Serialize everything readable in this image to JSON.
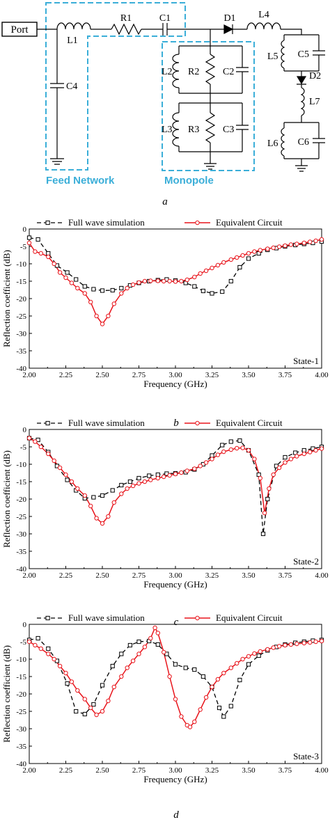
{
  "circuit": {
    "port_label": "Port",
    "components": [
      "L1",
      "R1",
      "C1",
      "D1",
      "L4",
      "C4",
      "L2",
      "R2",
      "C2",
      "L3",
      "R3",
      "C3",
      "L5",
      "C5",
      "D2",
      "L7",
      "L6",
      "C6"
    ],
    "feed_network_label": "Feed Network",
    "monopole_label": "Monopole",
    "box_color": "#3aaed8"
  },
  "captions": [
    "a",
    "b",
    "c",
    "d"
  ],
  "colors": {
    "full_wave": "#000000",
    "equivalent": "#e8141b"
  },
  "chart_data": [
    {
      "type": "line",
      "xlabel": "Frequency (GHz)",
      "ylabel": "Reflection coefficient (dB)",
      "xlim": [
        2.0,
        4.0
      ],
      "ylim": [
        -40,
        0
      ],
      "xticks": [
        "2.00",
        "2.25",
        "2.50",
        "2.75",
        "3.00",
        "3.25",
        "3.50",
        "3.75",
        "4.00"
      ],
      "yticks": [
        "0",
        "-5",
        "-10",
        "-15",
        "-20",
        "-25",
        "-30",
        "-35",
        "-40"
      ],
      "legend_position": "top",
      "annotation": "State-1",
      "series": [
        {
          "name": "Full wave simulation",
          "x": [
            2.0,
            2.06,
            2.13,
            2.19,
            2.26,
            2.32,
            2.38,
            2.44,
            2.5,
            2.57,
            2.63,
            2.69,
            2.75,
            2.82,
            2.88,
            2.94,
            3.0,
            3.07,
            3.13,
            3.19,
            3.25,
            3.32,
            3.38,
            3.44,
            3.5,
            3.57,
            3.63,
            3.69,
            3.75,
            3.82,
            3.88,
            3.94,
            4.0
          ],
          "y": [
            -2.5,
            -3.0,
            -7.0,
            -10.5,
            -12.5,
            -14.5,
            -16.5,
            -17.3,
            -17.7,
            -17.6,
            -17.0,
            -16.2,
            -15.5,
            -15.0,
            -14.7,
            -14.5,
            -14.8,
            -15.5,
            -16.5,
            -17.8,
            -18.5,
            -18.0,
            -15.0,
            -11.0,
            -8.5,
            -7.0,
            -6.0,
            -5.5,
            -5.0,
            -4.6,
            -4.3,
            -4.0,
            -3.6
          ]
        },
        {
          "name": "Equivalent Circuit",
          "x": [
            2.0,
            2.04,
            2.08,
            2.13,
            2.17,
            2.21,
            2.25,
            2.29,
            2.33,
            2.38,
            2.42,
            2.46,
            2.5,
            2.54,
            2.58,
            2.63,
            2.67,
            2.71,
            2.75,
            2.79,
            2.83,
            2.88,
            2.92,
            2.96,
            3.0,
            3.04,
            3.08,
            3.13,
            3.17,
            3.21,
            3.25,
            3.29,
            3.33,
            3.38,
            3.42,
            3.46,
            3.5,
            3.54,
            3.58,
            3.63,
            3.67,
            3.71,
            3.75,
            3.79,
            3.83,
            3.88,
            3.92,
            3.96,
            4.0
          ],
          "y": [
            -4.0,
            -6.5,
            -7.0,
            -8.0,
            -10.0,
            -12.5,
            -14.0,
            -15.5,
            -17.0,
            -18.5,
            -21.0,
            -25.0,
            -27.3,
            -25.0,
            -21.5,
            -18.5,
            -17.0,
            -16.0,
            -15.4,
            -15.0,
            -14.9,
            -14.9,
            -15.0,
            -15.0,
            -15.1,
            -15.0,
            -14.6,
            -13.8,
            -12.8,
            -12.0,
            -11.2,
            -10.4,
            -9.6,
            -8.8,
            -8.2,
            -7.6,
            -7.0,
            -6.5,
            -6.1,
            -5.7,
            -5.4,
            -5.1,
            -4.8,
            -4.5,
            -4.3,
            -4.0,
            -3.7,
            -3.4,
            -3.0
          ]
        }
      ]
    },
    {
      "type": "line",
      "xlabel": "Frequency (GHz)",
      "ylabel": "Reflection coefficient (dB)",
      "xlim": [
        2.0,
        4.0
      ],
      "ylim": [
        -40,
        0
      ],
      "xticks": [
        "2.00",
        "2.25",
        "2.50",
        "2.75",
        "3.00",
        "3.25",
        "3.50",
        "3.75",
        "4.00"
      ],
      "yticks": [
        "0",
        "-5",
        "-10",
        "-15",
        "-20",
        "-25",
        "-30",
        "-35",
        "-40"
      ],
      "legend_position": "top",
      "annotation": "State-2",
      "series": [
        {
          "name": "Full wave simulation",
          "x": [
            2.0,
            2.06,
            2.13,
            2.19,
            2.26,
            2.32,
            2.38,
            2.44,
            2.5,
            2.57,
            2.63,
            2.69,
            2.75,
            2.82,
            2.88,
            2.94,
            3.0,
            3.07,
            3.13,
            3.19,
            3.25,
            3.32,
            3.38,
            3.44,
            3.5,
            3.57,
            3.6,
            3.63,
            3.69,
            3.75,
            3.82,
            3.88,
            3.94,
            4.0
          ],
          "y": [
            -2.5,
            -3.0,
            -6.5,
            -10.5,
            -14.5,
            -17.5,
            -19.8,
            -19.5,
            -19.0,
            -17.5,
            -16.0,
            -15.0,
            -14.0,
            -13.3,
            -13.0,
            -12.7,
            -12.6,
            -12.3,
            -11.5,
            -10.0,
            -7.5,
            -4.5,
            -3.5,
            -3.2,
            -6.0,
            -13.0,
            -30.0,
            -20.0,
            -10.5,
            -8.0,
            -6.7,
            -6.0,
            -5.5,
            -5.0
          ]
        },
        {
          "name": "Equivalent Circuit",
          "x": [
            2.0,
            2.04,
            2.08,
            2.13,
            2.17,
            2.21,
            2.25,
            2.29,
            2.33,
            2.38,
            2.42,
            2.46,
            2.5,
            2.54,
            2.58,
            2.63,
            2.67,
            2.71,
            2.75,
            2.79,
            2.83,
            2.88,
            2.92,
            2.96,
            3.0,
            3.04,
            3.08,
            3.13,
            3.17,
            3.21,
            3.25,
            3.29,
            3.33,
            3.38,
            3.42,
            3.46,
            3.5,
            3.54,
            3.58,
            3.61,
            3.64,
            3.67,
            3.71,
            3.75,
            3.79,
            3.83,
            3.88,
            3.92,
            3.96,
            4.0
          ],
          "y": [
            -2.5,
            -3.5,
            -5.0,
            -7.0,
            -9.0,
            -11.0,
            -13.0,
            -15.0,
            -17.0,
            -19.0,
            -22.0,
            -25.5,
            -27.0,
            -25.0,
            -21.0,
            -18.5,
            -17.0,
            -16.2,
            -15.5,
            -15.0,
            -14.5,
            -14.0,
            -13.6,
            -13.2,
            -12.8,
            -12.4,
            -11.9,
            -11.3,
            -10.5,
            -9.5,
            -8.5,
            -7.3,
            -6.4,
            -5.8,
            -5.4,
            -5.3,
            -6.0,
            -8.5,
            -14.0,
            -24.0,
            -17.0,
            -13.0,
            -11.0,
            -9.5,
            -8.5,
            -7.7,
            -7.0,
            -6.5,
            -6.0,
            -5.5
          ]
        }
      ]
    },
    {
      "type": "line",
      "xlabel": "Frequency (GHz)",
      "ylabel": "Reflection coefficient (dB)",
      "xlim": [
        2.0,
        4.0
      ],
      "ylim": [
        -40,
        0
      ],
      "xticks": [
        "2.00",
        "2.25",
        "2.50",
        "2.75",
        "3.00",
        "3.25",
        "3.50",
        "3.75",
        "4.00"
      ],
      "yticks": [
        "0",
        "-5",
        "-10",
        "-15",
        "-20",
        "-25",
        "-30",
        "-35",
        "-40"
      ],
      "legend_position": "top",
      "annotation": "State-3",
      "series": [
        {
          "name": "Full wave simulation",
          "x": [
            2.0,
            2.06,
            2.13,
            2.19,
            2.26,
            2.32,
            2.38,
            2.44,
            2.5,
            2.57,
            2.63,
            2.69,
            2.75,
            2.82,
            2.88,
            2.94,
            3.0,
            3.07,
            3.13,
            3.19,
            3.25,
            3.3,
            3.33,
            3.38,
            3.44,
            3.5,
            3.57,
            3.63,
            3.69,
            3.75,
            3.82,
            3.88,
            3.94,
            4.0
          ],
          "y": [
            -4.5,
            -4.0,
            -7.0,
            -10.5,
            -17.0,
            -25.0,
            -25.8,
            -23.0,
            -17.5,
            -12.0,
            -8.5,
            -6.0,
            -5.0,
            -4.8,
            -5.8,
            -8.5,
            -11.5,
            -12.5,
            -13.0,
            -15.0,
            -18.0,
            -24.0,
            -26.5,
            -23.5,
            -16.0,
            -11.5,
            -9.0,
            -7.5,
            -6.5,
            -5.8,
            -5.3,
            -5.0,
            -4.7,
            -4.5
          ]
        },
        {
          "name": "Equivalent Circuit",
          "x": [
            2.0,
            2.04,
            2.08,
            2.13,
            2.17,
            2.21,
            2.25,
            2.29,
            2.33,
            2.38,
            2.42,
            2.46,
            2.5,
            2.54,
            2.58,
            2.63,
            2.67,
            2.71,
            2.75,
            2.79,
            2.83,
            2.86,
            2.88,
            2.92,
            2.96,
            3.0,
            3.04,
            3.08,
            3.1,
            3.13,
            3.17,
            3.21,
            3.25,
            3.29,
            3.33,
            3.38,
            3.42,
            3.46,
            3.5,
            3.54,
            3.58,
            3.63,
            3.67,
            3.71,
            3.75,
            3.79,
            3.83,
            3.88,
            3.92,
            3.96,
            4.0
          ],
          "y": [
            -5.0,
            -6.0,
            -7.0,
            -8.5,
            -10.0,
            -12.0,
            -14.0,
            -16.5,
            -19.0,
            -21.5,
            -24.0,
            -26.0,
            -25.0,
            -22.0,
            -18.0,
            -15.0,
            -12.5,
            -10.5,
            -8.5,
            -6.5,
            -4.0,
            -1.0,
            -2.5,
            -8.0,
            -15.0,
            -21.5,
            -26.5,
            -29.0,
            -29.5,
            -28.0,
            -24.5,
            -21.0,
            -18.0,
            -15.8,
            -14.0,
            -12.5,
            -11.2,
            -10.0,
            -9.2,
            -8.4,
            -7.8,
            -7.2,
            -6.7,
            -6.3,
            -6.0,
            -5.8,
            -5.6,
            -5.4,
            -5.2,
            -5.0,
            -4.8
          ]
        }
      ]
    }
  ]
}
